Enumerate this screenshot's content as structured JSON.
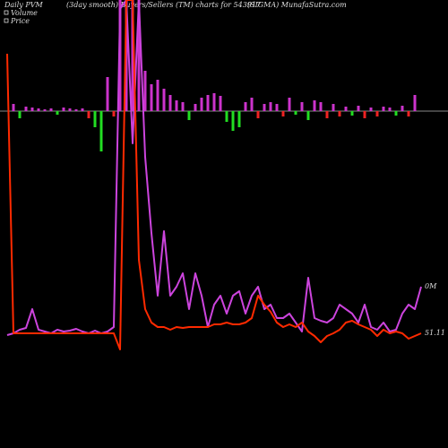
{
  "chart_data": {
    "type": "pvm",
    "titles": [
      "Daily PVM",
      "(3day smooth) Buyers/Sellers (TM) charts for 543917",
      "(SIGMA) MunafaSutra.com"
    ],
    "ylim": [
      0,
      500
    ],
    "bars": {
      "values": [
        8,
        -8,
        5,
        4,
        3,
        2,
        3,
        -4,
        4,
        3,
        2,
        3,
        -8,
        -18,
        -45,
        38,
        -6,
        124,
        124,
        124,
        124,
        45,
        30,
        35,
        25,
        18,
        12,
        10,
        -10,
        8,
        15,
        18,
        20,
        17,
        -12,
        -22,
        -18,
        10,
        15,
        -8,
        8,
        10,
        8,
        -6,
        15,
        -4,
        10,
        -10,
        12,
        10,
        -8,
        8,
        -6,
        5,
        -5,
        6,
        -8,
        4,
        -6,
        5,
        4,
        -5,
        6,
        -6,
        18
      ],
      "colors": [
        "#cc33cc",
        "#22dd22",
        "#cc33cc",
        "#cc33cc",
        "#cc33cc",
        "#cc33cc",
        "#cc33cc",
        "#22dd22",
        "#cc33cc",
        "#cc33cc",
        "#cc33cc",
        "#cc33cc",
        "#ee2222",
        "#22dd22",
        "#22dd22",
        "#cc33cc",
        "#ee2222",
        "#cc33cc",
        "#cc33cc",
        "#cc33cc",
        "#cc33cc",
        "#cc33cc",
        "#cc33cc",
        "#cc33cc",
        "#cc33cc",
        "#cc33cc",
        "#cc33cc",
        "#cc33cc",
        "#22dd22",
        "#cc33cc",
        "#cc33cc",
        "#cc33cc",
        "#cc33cc",
        "#cc33cc",
        "#22dd22",
        "#22dd22",
        "#22dd22",
        "#cc33cc",
        "#cc33cc",
        "#ee2222",
        "#cc33cc",
        "#cc33cc",
        "#cc33cc",
        "#ee2222",
        "#cc33cc",
        "#22dd22",
        "#cc33cc",
        "#22dd22",
        "#cc33cc",
        "#cc33cc",
        "#ee2222",
        "#cc33cc",
        "#ee2222",
        "#cc33cc",
        "#22dd22",
        "#cc33cc",
        "#ee2222",
        "#cc33cc",
        "#ee2222",
        "#cc33cc",
        "#cc33cc",
        "#22dd22",
        "#cc33cc",
        "#ee2222",
        "#cc33cc"
      ]
    },
    "series": [
      {
        "name": "Volume",
        "color": "#cc44dd",
        "values": [
          126,
          128,
          132,
          134,
          155,
          132,
          130,
          128,
          132,
          130,
          131,
          133,
          130,
          128,
          131,
          128,
          130,
          135,
          490,
          500,
          340,
          500,
          325,
          240,
          170,
          242,
          170,
          180,
          195,
          155,
          195,
          170,
          135,
          160,
          170,
          150,
          170,
          175,
          150,
          170,
          180,
          155,
          160,
          145,
          145,
          150,
          140,
          130,
          190,
          145,
          142,
          140,
          145,
          160,
          155,
          150,
          140,
          160,
          135,
          132,
          140,
          130,
          132,
          150,
          160,
          155,
          180
        ]
      },
      {
        "name": "Price",
        "color": "#ff2a00",
        "values": [
          440,
          128,
          128,
          128,
          128,
          128,
          128,
          128,
          128,
          128,
          128,
          128,
          128,
          128,
          128,
          128,
          128,
          128,
          110,
          500,
          500,
          210,
          155,
          140,
          135,
          135,
          132,
          135,
          134,
          135,
          135,
          135,
          135,
          138,
          138,
          140,
          138,
          138,
          140,
          145,
          170,
          160,
          152,
          140,
          135,
          138,
          135,
          140,
          130,
          125,
          118,
          125,
          128,
          132,
          140,
          142,
          138,
          135,
          132,
          125,
          132,
          128,
          130,
          128,
          122,
          125,
          128
        ]
      }
    ],
    "annotations": [
      "0M",
      "51.11"
    ]
  }
}
